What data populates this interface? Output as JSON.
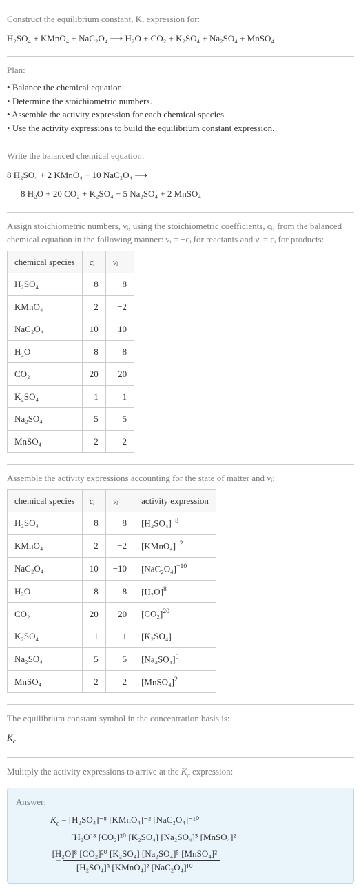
{
  "colors": {
    "text": "#333333",
    "heading": "#7a7a7a",
    "border": "#cccccc",
    "answer_bg": "#eaf4fb",
    "answer_border": "#b8d8ee",
    "table_header_bg": "#f7f7f7"
  },
  "intro": {
    "heading": "Construct the equilibrium constant, K, expression for:",
    "equation_lhs": "H₂SO₄ + KMnO₄ + NaC₂O₄",
    "arrow": "⟶",
    "equation_rhs": "H₂O + CO₂ + K₂SO₄ + Na₂SO₄ + MnSO₄"
  },
  "plan": {
    "heading": "Plan:",
    "items": [
      "Balance the chemical equation.",
      "Determine the stoichiometric numbers.",
      "Assemble the activity expression for each chemical species.",
      "Use the activity expressions to build the equilibrium constant expression."
    ]
  },
  "balanced": {
    "heading": "Write the balanced chemical equation:",
    "line1": "8 H₂SO₄ + 2 KMnO₄ + 10 NaC₂O₄ ⟶",
    "line2": "8 H₂O + 20 CO₂ + K₂SO₄ + 5 Na₂SO₄ + 2 MnSO₄"
  },
  "stoich": {
    "heading_a": "Assign stoichiometric numbers, νᵢ, using the stoichiometric coefficients, cᵢ, from the balanced chemical equation in the following manner: νᵢ = −cᵢ for reactants and νᵢ = cᵢ for products:",
    "columns": [
      "chemical species",
      "cᵢ",
      "νᵢ"
    ],
    "rows": [
      {
        "species": "H₂SO₄",
        "c": "8",
        "v": "−8"
      },
      {
        "species": "KMnO₄",
        "c": "2",
        "v": "−2"
      },
      {
        "species": "NaC₂O₄",
        "c": "10",
        "v": "−10"
      },
      {
        "species": "H₂O",
        "c": "8",
        "v": "8"
      },
      {
        "species": "CO₂",
        "c": "20",
        "v": "20"
      },
      {
        "species": "K₂SO₄",
        "c": "1",
        "v": "1"
      },
      {
        "species": "Na₂SO₄",
        "c": "5",
        "v": "5"
      },
      {
        "species": "MnSO₄",
        "c": "2",
        "v": "2"
      }
    ]
  },
  "activity": {
    "heading": "Assemble the activity expressions accounting for the state of matter and νᵢ:",
    "columns": [
      "chemical species",
      "cᵢ",
      "νᵢ",
      "activity expression"
    ],
    "rows": [
      {
        "species": "H₂SO₄",
        "c": "8",
        "v": "−8",
        "expr_base": "[H₂SO₄]",
        "expr_pow": "−8"
      },
      {
        "species": "KMnO₄",
        "c": "2",
        "v": "−2",
        "expr_base": "[KMnO₄]",
        "expr_pow": "−2"
      },
      {
        "species": "NaC₂O₄",
        "c": "10",
        "v": "−10",
        "expr_base": "[NaC₂O₄]",
        "expr_pow": "−10"
      },
      {
        "species": "H₂O",
        "c": "8",
        "v": "8",
        "expr_base": "[H₂O]",
        "expr_pow": "8"
      },
      {
        "species": "CO₂",
        "c": "20",
        "v": "20",
        "expr_base": "[CO₂]",
        "expr_pow": "20"
      },
      {
        "species": "K₂SO₄",
        "c": "1",
        "v": "1",
        "expr_base": "[K₂SO₄]",
        "expr_pow": ""
      },
      {
        "species": "Na₂SO₄",
        "c": "5",
        "v": "5",
        "expr_base": "[Na₂SO₄]",
        "expr_pow": "5"
      },
      {
        "species": "MnSO₄",
        "c": "2",
        "v": "2",
        "expr_base": "[MnSO₄]",
        "expr_pow": "2"
      }
    ]
  },
  "symbol": {
    "heading": "The equilibrium constant symbol in the concentration basis is:",
    "value": "K_c"
  },
  "multiply": {
    "heading": "Mulitply the activity expressions to arrive at the K_c expression:"
  },
  "answer": {
    "label": "Answer:",
    "line1_lhs": "K_c = ",
    "line1_terms": "[H₂SO₄]⁻⁸ [KMnO₄]⁻² [NaC₂O₄]⁻¹⁰",
    "line2_terms": "[H₂O]⁸ [CO₂]²⁰ [K₂SO₄] [Na₂SO₄]⁵ [MnSO₄]²",
    "eq": " = ",
    "frac_num": "[H₂O]⁸ [CO₂]²⁰ [K₂SO₄] [Na₂SO₄]⁵ [MnSO₄]²",
    "frac_den": "[H₂SO₄]⁸ [KMnO₄]² [NaC₂O₄]¹⁰"
  }
}
